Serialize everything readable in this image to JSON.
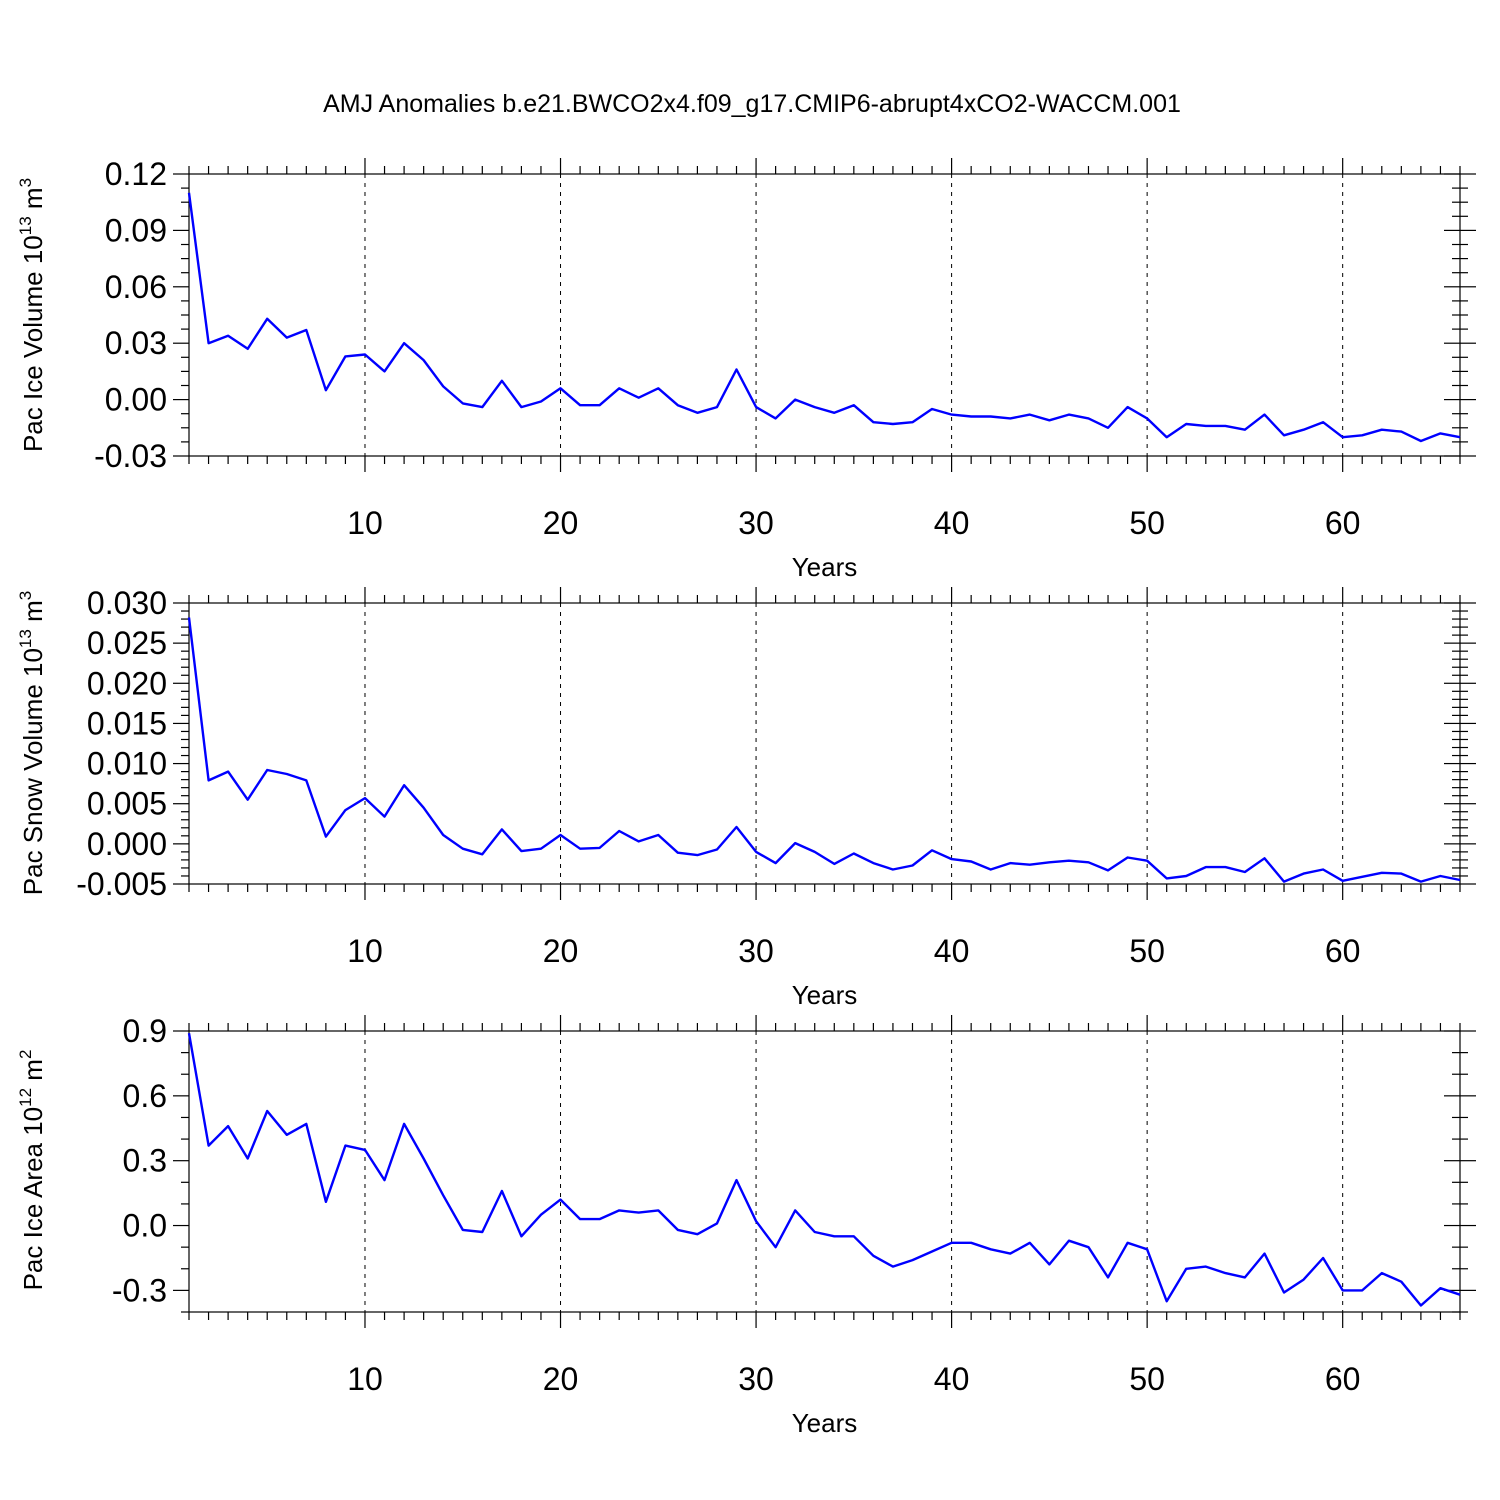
{
  "title": "AMJ Anomalies b.e21.BWCO2x4.f09_g17.CMIP6-abrupt4xCO2-WACCM.001",
  "chart_data": [
    {
      "type": "line",
      "title": "AMJ Anomalies b.e21.BWCO2x4.f09_g17.CMIP6-abrupt4xCO2-WACCM.001",
      "xlabel": "Years",
      "ylabel_main": "Pac Ice Volume 10",
      "ylabel_exp": "13",
      "ylabel_unit": " m",
      "ylabel_unit_exp": "3",
      "xlim": [
        1,
        66
      ],
      "ylim": [
        -0.03,
        0.12
      ],
      "xticks": [
        10,
        20,
        30,
        40,
        50,
        60
      ],
      "xtick_labels": [
        "10",
        "20",
        "30",
        "40",
        "50",
        "60"
      ],
      "yticks": [
        -0.03,
        0.0,
        0.03,
        0.06,
        0.09,
        0.12
      ],
      "ytick_labels": [
        "-0.03",
        "0.00",
        "0.03",
        "0.06",
        "0.09",
        "0.12"
      ],
      "minor_y_step": 0.0075,
      "series": [
        {
          "name": "Pac Ice Volume",
          "color": "#0000ff",
          "x_start": 1,
          "values": [
            0.11,
            0.03,
            0.034,
            0.027,
            0.043,
            0.033,
            0.037,
            0.005,
            0.023,
            0.024,
            0.015,
            0.03,
            0.021,
            0.007,
            -0.002,
            -0.004,
            0.01,
            -0.004,
            -0.001,
            0.006,
            -0.003,
            -0.003,
            0.006,
            0.001,
            0.006,
            -0.003,
            -0.007,
            -0.004,
            0.016,
            -0.004,
            -0.01,
            0.0,
            -0.004,
            -0.007,
            -0.003,
            -0.012,
            -0.013,
            -0.012,
            -0.005,
            -0.008,
            -0.009,
            -0.009,
            -0.01,
            -0.008,
            -0.011,
            -0.008,
            -0.01,
            -0.015,
            -0.004,
            -0.01,
            -0.02,
            -0.013,
            -0.014,
            -0.014,
            -0.016,
            -0.008,
            -0.019,
            -0.016,
            -0.012,
            -0.02,
            -0.019,
            -0.016,
            -0.017,
            -0.022,
            -0.018,
            -0.02
          ]
        }
      ]
    },
    {
      "type": "line",
      "xlabel": "Years",
      "ylabel_main": "Pac Snow Volume 10",
      "ylabel_exp": "13",
      "ylabel_unit": " m",
      "ylabel_unit_exp": "3",
      "xlim": [
        1,
        66
      ],
      "ylim": [
        -0.005,
        0.03
      ],
      "xticks": [
        10,
        20,
        30,
        40,
        50,
        60
      ],
      "xtick_labels": [
        "10",
        "20",
        "30",
        "40",
        "50",
        "60"
      ],
      "yticks": [
        -0.005,
        0.0,
        0.005,
        0.01,
        0.015,
        0.02,
        0.025,
        0.03
      ],
      "ytick_labels": [
        "-0.005",
        "0.000",
        "0.005",
        "0.010",
        "0.015",
        "0.020",
        "0.025",
        "0.030"
      ],
      "minor_y_step": 0.001,
      "series": [
        {
          "name": "Pac Snow Volume",
          "color": "#0000ff",
          "x_start": 1,
          "values": [
            0.0282,
            0.0079,
            0.009,
            0.0055,
            0.0092,
            0.0087,
            0.0079,
            0.0009,
            0.0042,
            0.0057,
            0.0034,
            0.0073,
            0.0045,
            0.0011,
            -0.0006,
            -0.0013,
            0.0018,
            -0.0009,
            -0.0006,
            0.0011,
            -0.0006,
            -0.0005,
            0.0016,
            0.0003,
            0.0011,
            -0.0011,
            -0.0014,
            -0.0007,
            0.0021,
            -0.001,
            -0.0024,
            0.0001,
            -0.001,
            -0.0025,
            -0.0012,
            -0.0024,
            -0.0032,
            -0.0027,
            -0.0008,
            -0.0019,
            -0.0022,
            -0.0032,
            -0.0024,
            -0.0026,
            -0.0023,
            -0.0021,
            -0.0023,
            -0.0033,
            -0.0017,
            -0.0021,
            -0.0043,
            -0.004,
            -0.0029,
            -0.0029,
            -0.0035,
            -0.0018,
            -0.0047,
            -0.0037,
            -0.0032,
            -0.0046,
            -0.0041,
            -0.0036,
            -0.0037,
            -0.0047,
            -0.004,
            -0.0045
          ]
        }
      ]
    },
    {
      "type": "line",
      "xlabel": "Years",
      "ylabel_main": "Pac Ice Area 10",
      "ylabel_exp": "12",
      "ylabel_unit": " m",
      "ylabel_unit_exp": "2",
      "xlim": [
        1,
        66
      ],
      "ylim": [
        -0.4,
        0.9
      ],
      "xticks": [
        10,
        20,
        30,
        40,
        50,
        60
      ],
      "xtick_labels": [
        "10",
        "20",
        "30",
        "40",
        "50",
        "60"
      ],
      "yticks": [
        -0.3,
        0.0,
        0.3,
        0.6,
        0.9
      ],
      "ytick_labels": [
        "-0.3",
        "0.0",
        "0.3",
        "0.6",
        "0.9"
      ],
      "minor_y_step": 0.1,
      "series": [
        {
          "name": "Pac Ice Area",
          "color": "#0000ff",
          "x_start": 1,
          "values": [
            0.89,
            0.37,
            0.46,
            0.31,
            0.53,
            0.42,
            0.47,
            0.11,
            0.37,
            0.35,
            0.21,
            0.47,
            0.31,
            0.14,
            -0.02,
            -0.03,
            0.16,
            -0.05,
            0.05,
            0.12,
            0.03,
            0.03,
            0.07,
            0.06,
            0.07,
            -0.02,
            -0.04,
            0.01,
            0.21,
            0.02,
            -0.1,
            0.07,
            -0.03,
            -0.05,
            -0.05,
            -0.14,
            -0.19,
            -0.16,
            -0.12,
            -0.08,
            -0.08,
            -0.11,
            -0.13,
            -0.08,
            -0.18,
            -0.07,
            -0.1,
            -0.24,
            -0.08,
            -0.11,
            -0.35,
            -0.2,
            -0.19,
            -0.22,
            -0.24,
            -0.13,
            -0.31,
            -0.25,
            -0.15,
            -0.3,
            -0.3,
            -0.22,
            -0.26,
            -0.37,
            -0.29,
            -0.32
          ]
        }
      ]
    }
  ]
}
